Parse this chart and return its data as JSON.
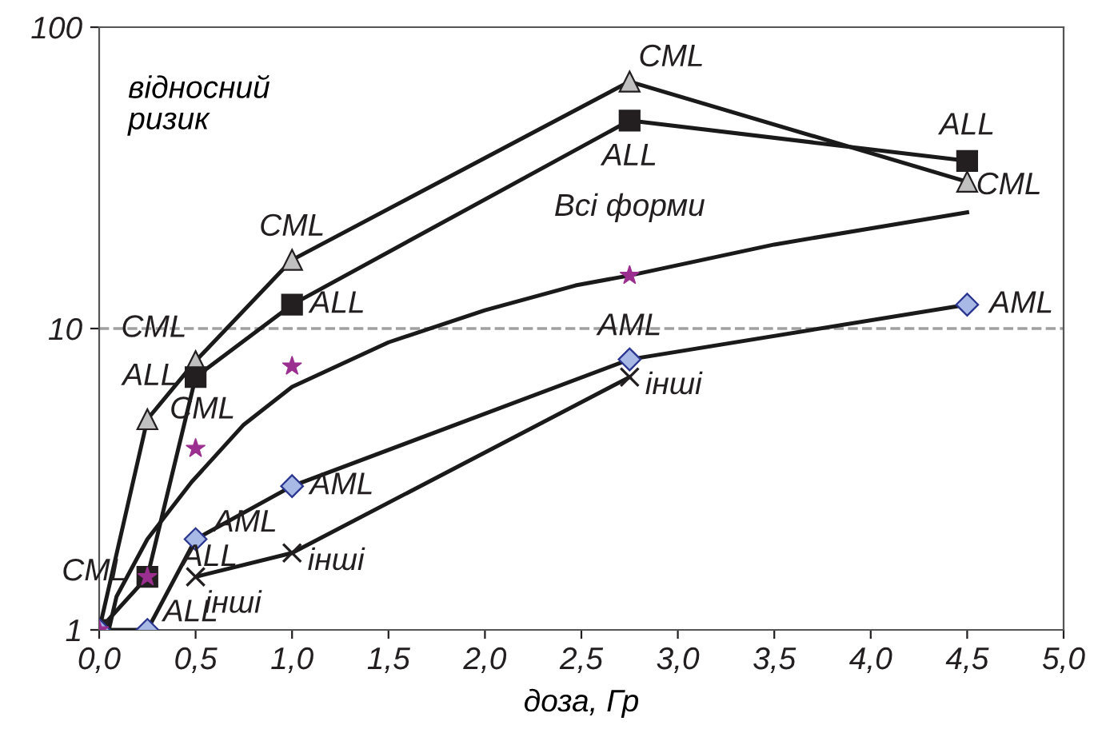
{
  "chart_data": {
    "type": "line",
    "xlabel": "доза, Гр",
    "ylabel": "відносний\nризик",
    "log": "y",
    "grid": false,
    "legend": false,
    "line_style": "solid",
    "xlim": [
      0,
      5
    ],
    "ylim": [
      1,
      100
    ],
    "xticks": [
      {
        "value": 0,
        "label": "0,0"
      },
      {
        "value": 0.5,
        "label": "0,5"
      },
      {
        "value": 1,
        "label": "1,0"
      },
      {
        "value": 1.5,
        "label": "1,5"
      },
      {
        "value": 2,
        "label": "2,0"
      },
      {
        "value": 2.5,
        "label": "2,5"
      },
      {
        "value": 3,
        "label": "3,0"
      },
      {
        "value": 3.5,
        "label": "3,5"
      },
      {
        "value": 4,
        "label": "4,0"
      },
      {
        "value": 4.5,
        "label": "4,5"
      },
      {
        "value": 5,
        "label": "5,0"
      }
    ],
    "yticks": [
      1,
      10,
      100
    ],
    "ref_lines": [
      {
        "axis": "y",
        "value": 10,
        "color": "#a0a0a0",
        "line_style": "dashed"
      }
    ],
    "series": [
      {
        "marker": "triangle",
        "color": "#c0c0c0",
        "x": [
          0,
          0.25,
          0.5,
          1.0,
          2.75,
          4.5
        ],
        "values": [
          1,
          5.0,
          7.8,
          16.9,
          66,
          30.7
        ]
      },
      {
        "marker": "square",
        "color": "#231f20",
        "x": [
          0,
          0.25,
          0.5,
          1.0,
          2.75,
          4.5
        ],
        "values": [
          1,
          1.5,
          6.9,
          12,
          49,
          36
        ]
      },
      {
        "type": "line",
        "marker": "none",
        "color": "#231f20",
        "x": [
          0.05,
          0.09,
          0.25,
          0.48,
          0.75,
          1.0,
          1.5,
          2.0,
          2.47,
          2.75,
          3.5,
          4.0,
          4.5
        ],
        "values": [
          1.0,
          1.29,
          2.0,
          3.1,
          4.8,
          6.4,
          9.0,
          11.5,
          13.9,
          15.0,
          19,
          21.5,
          24.3
        ]
      },
      {
        "type": "scatter",
        "marker": "star",
        "color": "#9b2f8f",
        "x": [
          0,
          0.25,
          0.5,
          1.0,
          2.75
        ],
        "values": [
          1,
          1.5,
          4.0,
          7.5,
          15
        ]
      },
      {
        "marker": "diamond",
        "color": "#a9b9e6",
        "x": [
          0,
          0.25,
          0.5,
          1.0,
          2.75,
          4.5
        ],
        "values": [
          1,
          1,
          2.0,
          3.0,
          7.9,
          12
        ]
      },
      {
        "marker": "cross",
        "color": "#231f20",
        "x": [
          0.5,
          1.0,
          2.75
        ],
        "values": [
          1.5,
          1.8,
          6.9
        ]
      }
    ],
    "annotations": [
      {
        "text": "CML",
        "x": 0.25,
        "y": 5.0
      },
      {
        "text": "CML",
        "x": 0.5,
        "y": 7.8
      },
      {
        "text": "CML",
        "x": 1.0,
        "y": 16.9
      },
      {
        "text": "CML",
        "x": 2.75,
        "y": 66
      },
      {
        "text": "CML",
        "x": 4.5,
        "y": 30.7
      },
      {
        "text": "CML",
        "x": 0.25,
        "y": 1.5
      },
      {
        "text": "ALL",
        "x": 0.5,
        "y": 6.9
      },
      {
        "text": "ALL",
        "x": 1.0,
        "y": 12
      },
      {
        "text": "ALL",
        "x": 2.75,
        "y": 49
      },
      {
        "text": "ALL",
        "x": 4.5,
        "y": 36
      },
      {
        "text": "ALL",
        "x": 0.5,
        "y": 1.5
      },
      {
        "text": "ALL",
        "x": 0.25,
        "y": 1
      },
      {
        "text": "інші",
        "x": 0.5,
        "y": 1.5
      },
      {
        "text": "інші",
        "x": 1.0,
        "y": 1.8
      },
      {
        "text": "інші",
        "x": 2.75,
        "y": 6.9
      },
      {
        "text": "AML",
        "x": 0.5,
        "y": 2.0
      },
      {
        "text": "AML",
        "x": 1.0,
        "y": 3.0
      },
      {
        "text": "AML",
        "x": 2.75,
        "y": 7.9
      },
      {
        "text": "AML",
        "x": 4.5,
        "y": 12
      },
      {
        "text": "Всі форми",
        "x": 2.75,
        "y": 15
      }
    ]
  }
}
